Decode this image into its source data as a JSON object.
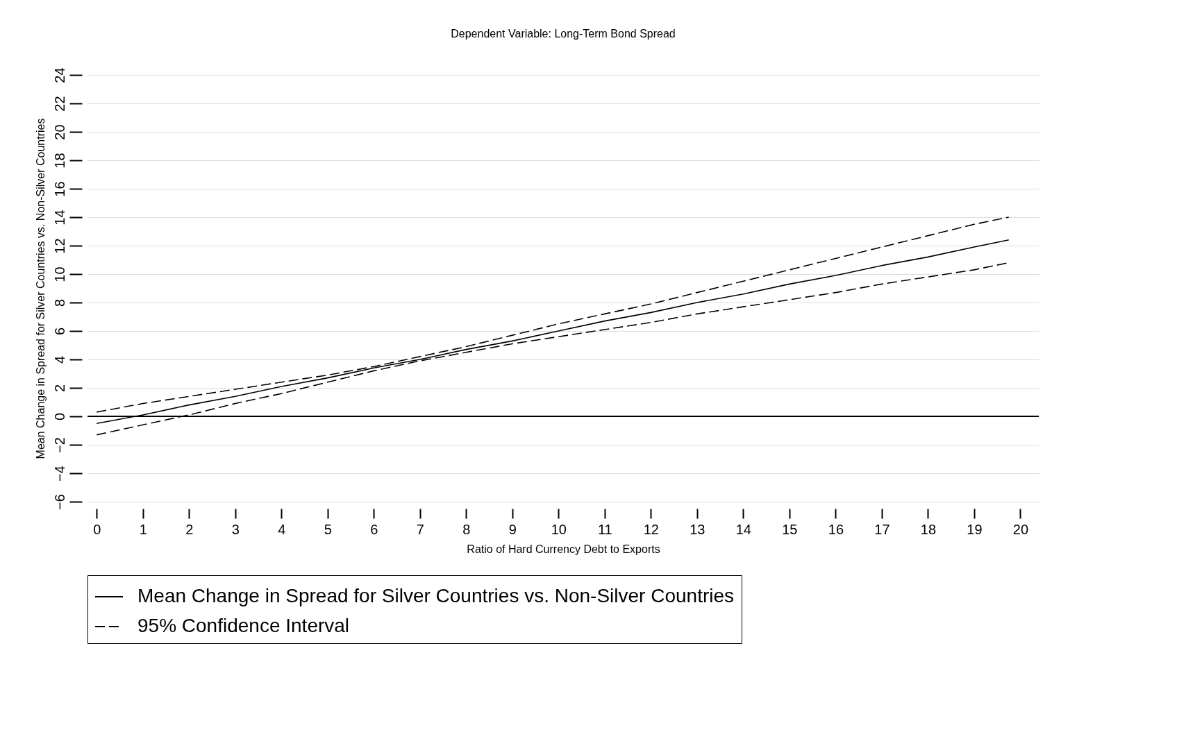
{
  "chart_data": {
    "type": "line",
    "title": "Dependent Variable: Long-Term Bond Spread",
    "xlabel": "Ratio of Hard Currency Debt to Exports",
    "ylabel": "Mean Change in Spread for Silver Countries vs. Non-Silver Countries",
    "x": [
      0,
      1,
      2,
      3,
      4,
      5,
      6,
      7,
      8,
      9,
      10,
      11,
      12,
      13,
      14,
      15,
      16,
      17,
      18,
      19,
      19.75
    ],
    "series": [
      {
        "name": "Mean Change in Spread for Silver Countries vs. Non-Silver Countries",
        "color": "#000000",
        "line_style": "solid",
        "values": [
          -0.5,
          0.1,
          0.8,
          1.4,
          2.1,
          2.7,
          3.4,
          4.0,
          4.7,
          5.3,
          6.0,
          6.7,
          7.3,
          8.0,
          8.6,
          9.3,
          9.9,
          10.6,
          11.2,
          11.9,
          12.4
        ]
      },
      {
        "name": "95% Confidence Interval",
        "color": "#000000",
        "line_style": "dashed",
        "values": [
          0.3,
          0.9,
          1.4,
          1.9,
          2.4,
          2.9,
          3.5,
          4.2,
          4.9,
          5.7,
          6.5,
          7.2,
          7.9,
          8.7,
          9.5,
          10.3,
          11.1,
          11.9,
          12.7,
          13.5,
          14.0
        ]
      },
      {
        "color": "#000000",
        "line_style": "dashed",
        "values": [
          -1.3,
          -0.6,
          0.1,
          0.9,
          1.6,
          2.4,
          3.2,
          3.9,
          4.5,
          5.1,
          5.6,
          6.1,
          6.6,
          7.2,
          7.7,
          8.2,
          8.7,
          9.3,
          9.8,
          10.3,
          10.8
        ]
      }
    ],
    "xlim": [
      -0.2,
      20.4
    ],
    "xticks": [
      0,
      1,
      2,
      3,
      4,
      5,
      6,
      7,
      8,
      9,
      10,
      11,
      12,
      13,
      14,
      15,
      16,
      17,
      18,
      19,
      20
    ],
    "ylim": [
      -6,
      24
    ],
    "yticks": [
      -6,
      -4,
      -2,
      0,
      2,
      4,
      6,
      8,
      10,
      12,
      14,
      16,
      18,
      20,
      22,
      24
    ],
    "grid": "y",
    "legend": "bottom",
    "ref_lines": [
      {
        "axis": "y",
        "value": 0,
        "color": "#000000"
      }
    ]
  }
}
